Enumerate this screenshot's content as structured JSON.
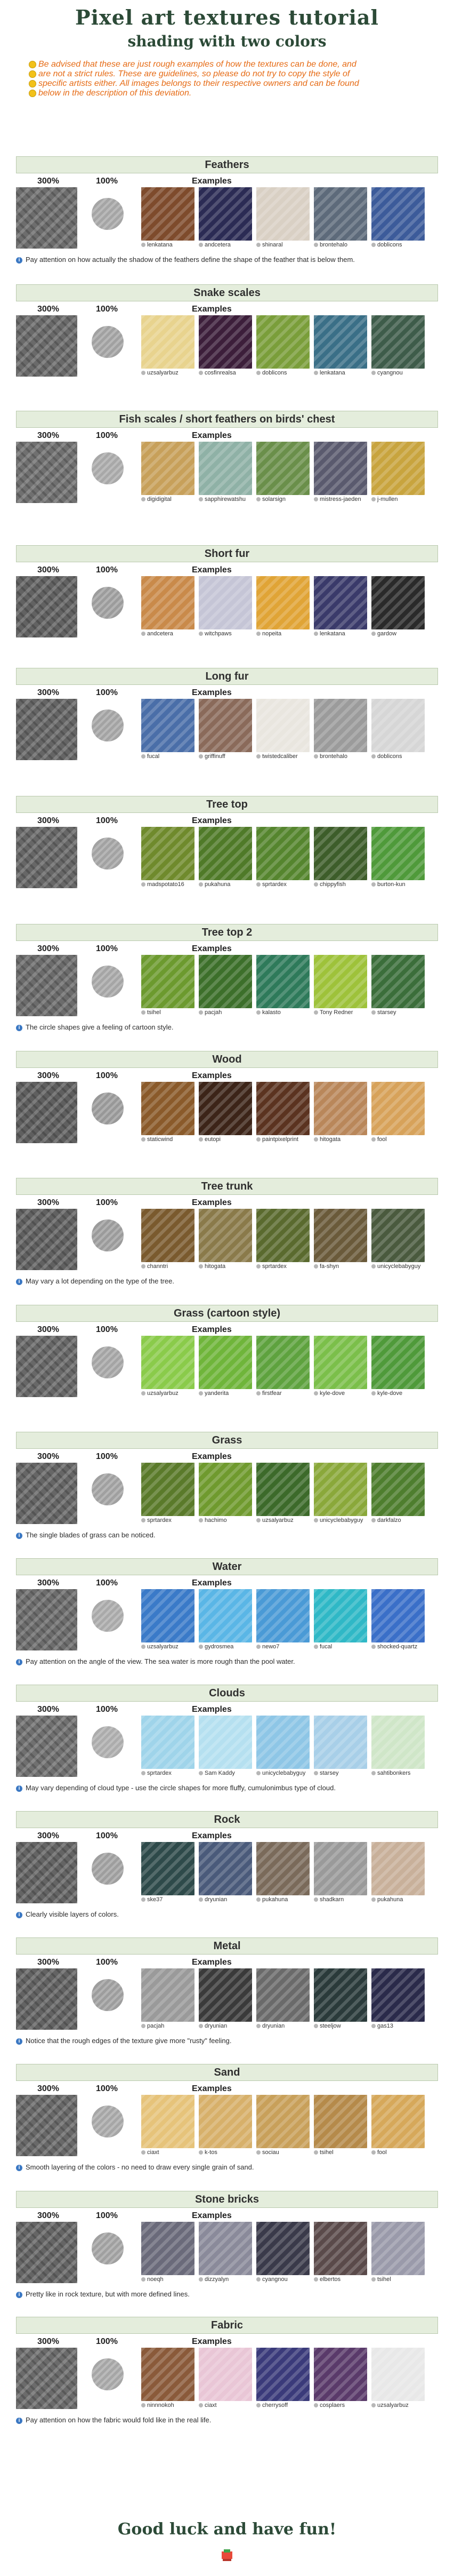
{
  "title": "Pixel art textures tutorial",
  "subtitle": "shading with two colors",
  "disclaimer": [
    "Be advised that these are just rough examples of how the textures can be done, and",
    "are not a strict rules. These are guidelines, so please do not try to copy the style of",
    "specific artists either. All images belongs to their respective owners and can be found",
    "below in the description of this deviation."
  ],
  "labels": {
    "scale300": "300%",
    "scale100": "100%",
    "examples": "Examples"
  },
  "sections": [
    {
      "title": "Feathers",
      "artists": [
        "lenkatana",
        "andcetera",
        "shinaral",
        "brontehalo",
        "doblicons"
      ],
      "note": "Pay attention on how actually the shadow of the feathers define the shape of the feather that is below them.",
      "colors": [
        "#7e4b2c",
        "#2b2b54",
        "#d9d0c4",
        "#5d6a7a",
        "#3c5b9a"
      ],
      "dark": "#6d6d6d",
      "light": "#a5a5a5"
    },
    {
      "title": "Snake scales",
      "artists": [
        "uzsalyarbuz",
        "cosfinrealsa",
        "doblicons",
        "lenkatana",
        "cyangnou"
      ],
      "note": "",
      "colors": [
        "#e8d38e",
        "#3c1e3a",
        "#7a9e3a",
        "#3a6f87",
        "#3e5c4a"
      ],
      "dark": "#6a6a6a",
      "light": "#a1a1a1"
    },
    {
      "title": "Fish scales / short feathers on birds' chest",
      "artists": [
        "digidigital",
        "sapphirewatshu",
        "solarsign",
        "mistress-jaeden",
        "j-mullen"
      ],
      "note": "",
      "colors": [
        "#c7a05a",
        "#8fb1a6",
        "#6a8f4a",
        "#5a5a6e",
        "#c8a43e"
      ],
      "dark": "#707070",
      "light": "#a8a8a8"
    },
    {
      "title": "Short fur",
      "artists": [
        "andcetera",
        "witchpaws",
        "nopeita",
        "lenkatana",
        "gardow"
      ],
      "note": "",
      "colors": [
        "#c98a4a",
        "#c5c5d6",
        "#e0a436",
        "#3a3a6a",
        "#2a2a2a"
      ],
      "dark": "#626262",
      "light": "#9c9c9c"
    },
    {
      "title": "Long fur",
      "artists": [
        "fucal",
        "griffinuff",
        "twistedcaliber",
        "brontehalo",
        "doblicons"
      ],
      "note": "",
      "colors": [
        "#4a6ea8",
        "#8a6a5a",
        "#e9e6df",
        "#9b9b9b",
        "#d6d6d6"
      ],
      "dark": "#656565",
      "light": "#a3a3a3"
    },
    {
      "title": "Tree top",
      "artists": [
        "madspotato16",
        "pukahuna",
        "sprtardex",
        "chippyfish",
        "burton-kun"
      ],
      "note": "",
      "colors": [
        "#6f8a2c",
        "#4f7a28",
        "#55852e",
        "#3d5d2a",
        "#4f9a3a"
      ],
      "dark": "#676767",
      "light": "#a2a2a2"
    },
    {
      "title": "Tree top 2",
      "artists": [
        "tsihel",
        "pacjah",
        "kalasto",
        "Tony Redner",
        "starsey"
      ],
      "note": "The circle shapes give a feeling of cartoon style.",
      "colors": [
        "#6c9a2e",
        "#3c6f2a",
        "#2e7a5a",
        "#9ec23a",
        "#3b6e3a"
      ],
      "dark": "#6c6c6c",
      "light": "#a5a5a5"
    },
    {
      "title": "Wood",
      "artists": [
        "staticwind",
        "eutopi",
        "paintpixelprint",
        "hitogata",
        "fool"
      ],
      "note": "",
      "colors": [
        "#8a5a2a",
        "#3c2418",
        "#5b3320",
        "#b9875a",
        "#d7a25a"
      ],
      "dark": "#5f5f5f",
      "light": "#989898"
    },
    {
      "title": "Tree trunk",
      "artists": [
        "channtri",
        "hitogata",
        "sprtardex",
        "fa-shyn",
        "unicyclebabyguy"
      ],
      "note": "May vary a lot depending on the type of the tree.",
      "colors": [
        "#7a5a2e",
        "#8a7a4a",
        "#5a6a2e",
        "#6a5a3a",
        "#4a5a3e"
      ],
      "dark": "#616161",
      "light": "#9b9b9b"
    },
    {
      "title": "Grass (cartoon style)",
      "artists": [
        "uzsalyarbuz",
        "yanderita",
        "firstfear",
        "kyle-dove",
        "kyle-dove"
      ],
      "note": "",
      "colors": [
        "#8acb4a",
        "#6fb53a",
        "#5ea23e",
        "#7bbf4a",
        "#4f9a3a"
      ],
      "dark": "#686868",
      "light": "#a4a4a4"
    },
    {
      "title": "Grass",
      "artists": [
        "sprtardex",
        "hachimo",
        "uzsalyarbuz",
        "unicyclebabyguy",
        "darkfalzo"
      ],
      "note": "The single blades of grass can be noticed.",
      "colors": [
        "#5a7a2a",
        "#6f9a2e",
        "#3c6a2a",
        "#8aa83a",
        "#4e7e2e"
      ],
      "dark": "#666666",
      "light": "#a0a0a0"
    },
    {
      "title": "Water",
      "artists": [
        "uzsalyarbuz",
        "gydrosmea",
        "newo7",
        "fucal",
        "shocked-quartz"
      ],
      "note": "Pay attention on the angle of the view. The sea water is more rough than the pool water.",
      "colors": [
        "#3a7ac8",
        "#5ab6e6",
        "#4a9ad6",
        "#2fb8c6",
        "#3a6fc8"
      ],
      "dark": "#6d6d6d",
      "light": "#a9a9a9"
    },
    {
      "title": "Clouds",
      "artists": [
        "sprtardex",
        "Sam Kaddy",
        "unicyclebabyguy",
        "starsey",
        "sahtibonkers"
      ],
      "note": "May vary depending of cloud type - use the circle shapes for more fluffy, cumulonimbus type of cloud.",
      "colors": [
        "#9fd4ea",
        "#b5e0f0",
        "#8ec6e6",
        "#a8cfe8",
        "#cfe6c8"
      ],
      "dark": "#707070",
      "light": "#acacac"
    },
    {
      "title": "Rock",
      "artists": [
        "ske37",
        "dryunian",
        "pukahuna",
        "shadkarn",
        "pukahuna"
      ],
      "note": "Clearly visible layers of colors.",
      "colors": [
        "#2e4a4a",
        "#4a5a7a",
        "#7a6a5a",
        "#9a9a9a",
        "#c8b09a"
      ],
      "dark": "#646464",
      "light": "#9e9e9e"
    },
    {
      "title": "Metal",
      "artists": [
        "pacjah",
        "dryunian",
        "dryunian",
        "steeljow",
        "gas13"
      ],
      "note": "Notice that the rough edges of the texture give more \"rusty\" feeling.",
      "colors": [
        "#9a9a9a",
        "#3a3a3a",
        "#6a6a6a",
        "#2a3a3a",
        "#2a2a4a"
      ],
      "dark": "#636363",
      "light": "#9d9d9d"
    },
    {
      "title": "Sand",
      "artists": [
        "ciaxt",
        "k-tos",
        "sociau",
        "tsihel",
        "fool"
      ],
      "note": "Smooth layering of the colors - no need to draw every single grain of sand.",
      "colors": [
        "#e6c37a",
        "#d7b06a",
        "#c8a05a",
        "#b58a4a",
        "#d6a85a"
      ],
      "dark": "#696969",
      "light": "#a6a6a6"
    },
    {
      "title": "Stone bricks",
      "artists": [
        "noeqh",
        "dizzyalyn",
        "cyangnou",
        "elbertos",
        "tsihel"
      ],
      "note": "Pretty like in rock texture, but with more defined lines.",
      "colors": [
        "#6a6a7a",
        "#8a8a9a",
        "#3a3a4a",
        "#5a4a4a",
        "#9a9aaa"
      ],
      "dark": "#656565",
      "light": "#a0a0a0"
    },
    {
      "title": "Fabric",
      "artists": [
        "ninnnokoh",
        "ciaxt",
        "cherrysoff",
        "cosplaers",
        "uzsalyarbuz"
      ],
      "note": "Pay attention on how the fabric would fold like in the real life.",
      "colors": [
        "#8a5a3a",
        "#e9c6d6",
        "#3a3a7a",
        "#5a3a6a",
        "#e8e8e8"
      ],
      "dark": "#6b6b6b",
      "light": "#a6a6a6"
    }
  ],
  "footer": "Good luck and have fun!"
}
